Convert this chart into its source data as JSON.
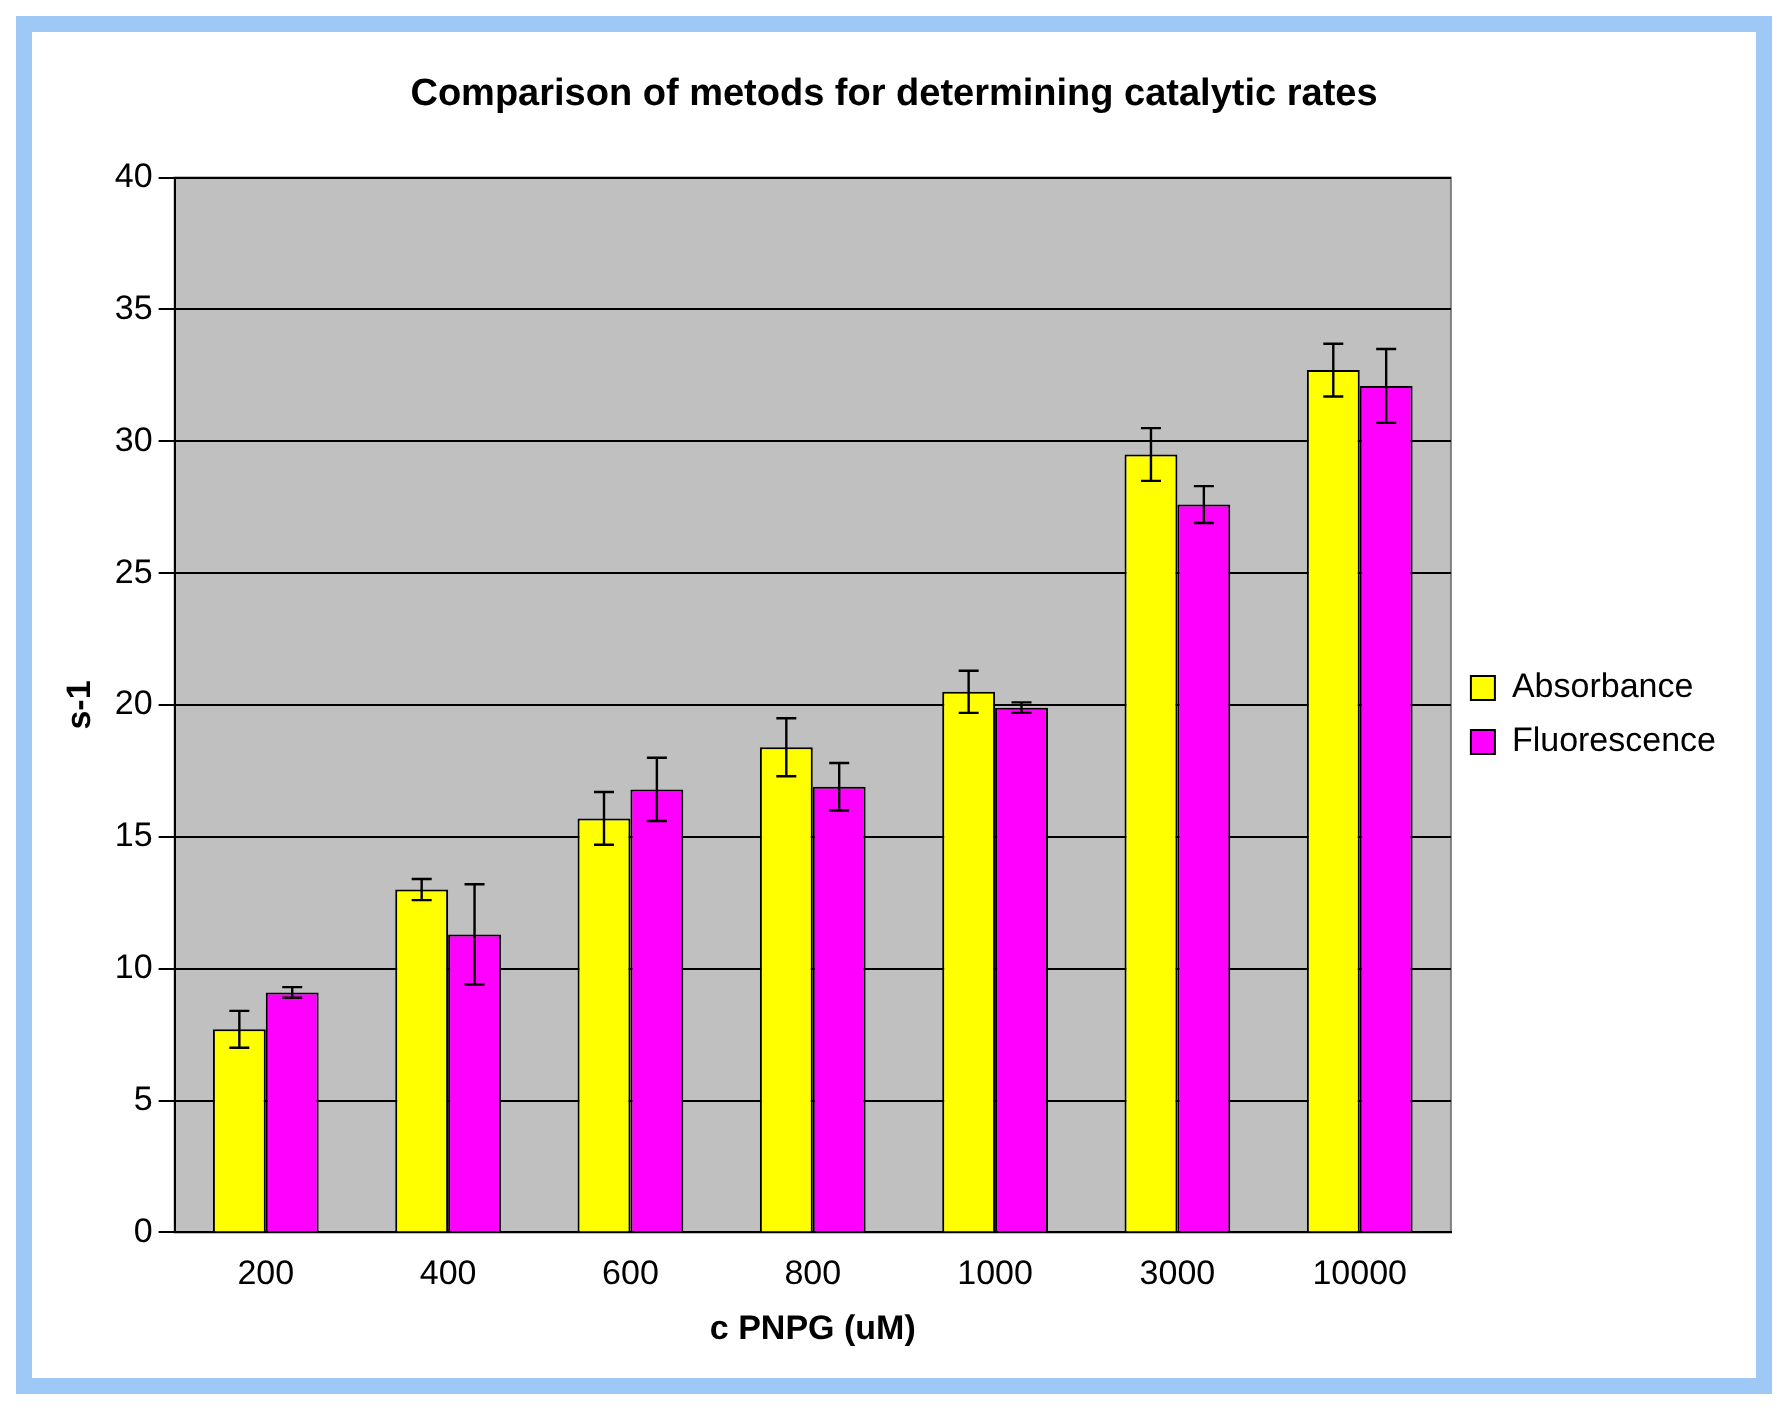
{
  "chart_data": {
    "type": "bar",
    "title": "Comparison of metods for determining catalytic rates",
    "xlabel": "c PNPG (uM)",
    "ylabel": "s-1",
    "categories": [
      "200",
      "400",
      "600",
      "800",
      "1000",
      "3000",
      "10000"
    ],
    "series": [
      {
        "name": "Absorbance",
        "color": "#ffff00",
        "values": [
          7.7,
          13.0,
          15.7,
          18.4,
          20.5,
          29.5,
          32.7
        ],
        "errors": [
          0.7,
          0.4,
          1.0,
          1.1,
          0.8,
          1.0,
          1.0
        ]
      },
      {
        "name": "Fluorescence",
        "color": "#ff00ff",
        "values": [
          9.1,
          11.3,
          16.8,
          16.9,
          19.9,
          27.6,
          32.1
        ],
        "errors": [
          0.2,
          1.9,
          1.2,
          0.9,
          0.2,
          0.7,
          1.4
        ]
      }
    ],
    "ylim": [
      0,
      40
    ],
    "yticks": [
      0,
      5,
      10,
      15,
      20,
      25,
      30,
      35,
      40
    ],
    "grid": "y",
    "legend": "right"
  }
}
